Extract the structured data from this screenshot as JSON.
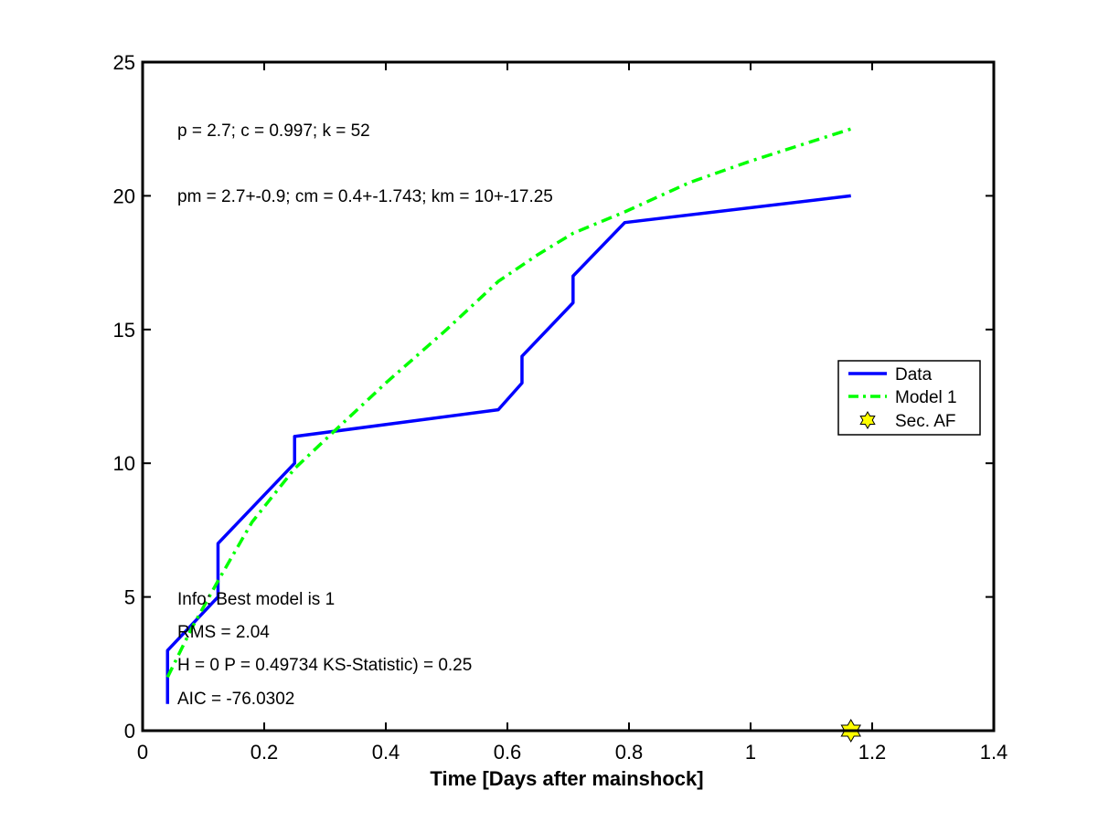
{
  "chart_data": {
    "type": "line",
    "title": "",
    "xlabel": "Time [Days after mainshock]",
    "ylabel": "",
    "xlim": [
      0,
      1.4
    ],
    "ylim": [
      0,
      25
    ],
    "xticks": [
      0,
      0.2,
      0.4,
      0.6,
      0.8,
      1,
      1.2,
      1.4
    ],
    "yticks": [
      0,
      5,
      10,
      15,
      20,
      25
    ],
    "grid": false,
    "legend_position": "right",
    "series": [
      {
        "name": "Data",
        "color": "#0000ff",
        "style": "solid",
        "x": [
          0.041,
          0.041,
          0.124,
          0.124,
          0.25,
          0.25,
          0.585,
          0.624,
          0.624,
          0.708,
          0.708,
          0.793,
          1.165
        ],
        "y": [
          1,
          3,
          5,
          7,
          10,
          11,
          12,
          13,
          14,
          16,
          17,
          19,
          20
        ]
      },
      {
        "name": "Model 1",
        "color": "#00ff00",
        "style": "dash-dot",
        "x": [
          0.041,
          0.08,
          0.124,
          0.18,
          0.25,
          0.32,
          0.4,
          0.5,
          0.585,
          0.65,
          0.708,
          0.793,
          0.9,
          1.0,
          1.165
        ],
        "y": [
          2,
          3.8,
          5.6,
          7.8,
          9.8,
          11.3,
          13,
          15,
          16.8,
          17.8,
          18.6,
          19.4,
          20.5,
          21.3,
          22.5
        ]
      },
      {
        "name": "Sec. AF",
        "color": "#ffff00",
        "marker": "hexagram",
        "x": [
          1.165
        ],
        "y": [
          0
        ]
      }
    ],
    "annotations": {
      "params": "p = 2.7; c = 0.997; k = 52",
      "param_errors": "pm = 2.7+-0.9; cm = 0.4+-1.743; km = 10+-17.25",
      "info": "Info: Best model is 1",
      "rms": "RMS = 2.04",
      "ks": "H = 0 P = 0.49734 KS-Statistic) = 0.25",
      "aic": "AIC = -76.0302"
    }
  }
}
